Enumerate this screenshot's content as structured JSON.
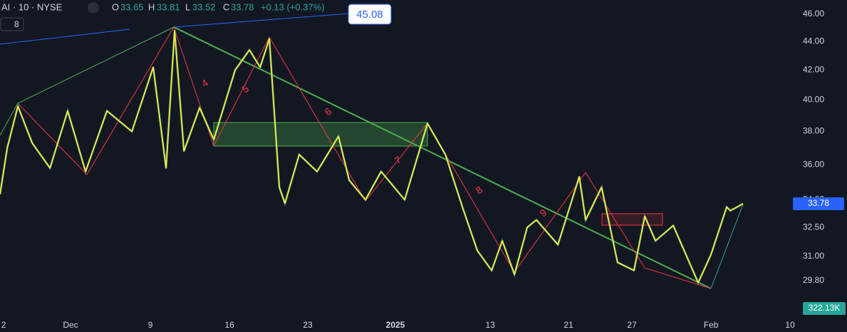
{
  "header": {
    "symbol": "AI · 10 · NYSE",
    "o_label": "O",
    "open": 33.65,
    "h_label": "H",
    "high": 33.81,
    "l_label": "L",
    "low": 33.52,
    "c_label": "C",
    "close": 33.78,
    "change": "+0.13 (+0.37%)",
    "indicator_count": "8"
  },
  "callout": "45.08",
  "volume_label": "322.13K",
  "wave_labels": [
    "4",
    "5",
    "6",
    "7",
    "8",
    "9"
  ],
  "chart_data": {
    "type": "line",
    "log_scale": true,
    "grid": false,
    "series": [
      {
        "name": "AI",
        "color": "#ffeb3b",
        "x": [
          -0.23,
          0.23,
          0.9,
          1.8,
          2.93,
          4.05,
          5.18,
          6.53,
          8.11,
          9.46,
          10.27,
          10.81,
          11.4,
          12.39,
          13.29,
          14.64,
          15.54,
          16.22,
          16.8,
          17.43,
          17.79,
          18.69,
          19.82,
          21.17,
          21.85,
          22.88,
          23.87,
          25.36,
          26.8,
          27.93,
          29.05,
          29.95,
          30.86,
          31.53,
          32.3,
          33.11,
          33.69,
          35.05,
          36.4,
          36.8,
          37.81,
          38.82,
          39.86,
          40.54,
          41.22,
          42.34,
          43.92,
          44.73,
          45.72,
          45.95,
          46.76
        ],
        "values": [
          34.3,
          37.0,
          39.6,
          37.3,
          35.8,
          39.3,
          35.6,
          39.3,
          38.0,
          42.2,
          35.8,
          44.8,
          36.8,
          39.5,
          37.5,
          42.0,
          43.4,
          42.2,
          44.2,
          34.7,
          33.8,
          36.6,
          35.6,
          37.7,
          35.1,
          34.0,
          35.6,
          34.0,
          38.5,
          36.6,
          33.5,
          31.3,
          30.3,
          31.8,
          30.1,
          32.5,
          32.9,
          31.6,
          35.3,
          32.9,
          34.7,
          30.7,
          30.3,
          33.1,
          31.8,
          32.6,
          29.7,
          31.1,
          33.6,
          33.4,
          33.78
        ]
      }
    ],
    "ylim": [
      28.15,
      47.08
    ],
    "yticks": [
      {
        "value": 46,
        "label": "46.00"
      },
      {
        "value": 44,
        "label": "44.00"
      },
      {
        "value": 42,
        "label": "42.00"
      },
      {
        "value": 40,
        "label": "40.00"
      },
      {
        "value": 38,
        "label": "38.00"
      },
      {
        "value": 36,
        "label": "36.00"
      },
      {
        "value": 34,
        "label": "34.00"
      },
      {
        "value": 32.5,
        "label": "32.50"
      },
      {
        "value": 31,
        "label": "31.00"
      },
      {
        "value": 29.8,
        "label": "29.80"
      }
    ],
    "xlim": [
      -0.23,
      49.77
    ],
    "xticks": [
      {
        "value": 0,
        "label": "2"
      },
      {
        "value": 4.23,
        "label": "Dec"
      },
      {
        "value": 9.28,
        "label": "9"
      },
      {
        "value": 14.28,
        "label": "16"
      },
      {
        "value": 19.23,
        "label": "23"
      },
      {
        "value": 24.77,
        "label": "2025"
      },
      {
        "value": 30.77,
        "label": "13"
      },
      {
        "value": 35.72,
        "label": "21"
      },
      {
        "value": 39.73,
        "label": "27"
      },
      {
        "value": 44.73,
        "label": "Feb"
      },
      {
        "value": 49.73,
        "label": "10"
      }
    ]
  }
}
